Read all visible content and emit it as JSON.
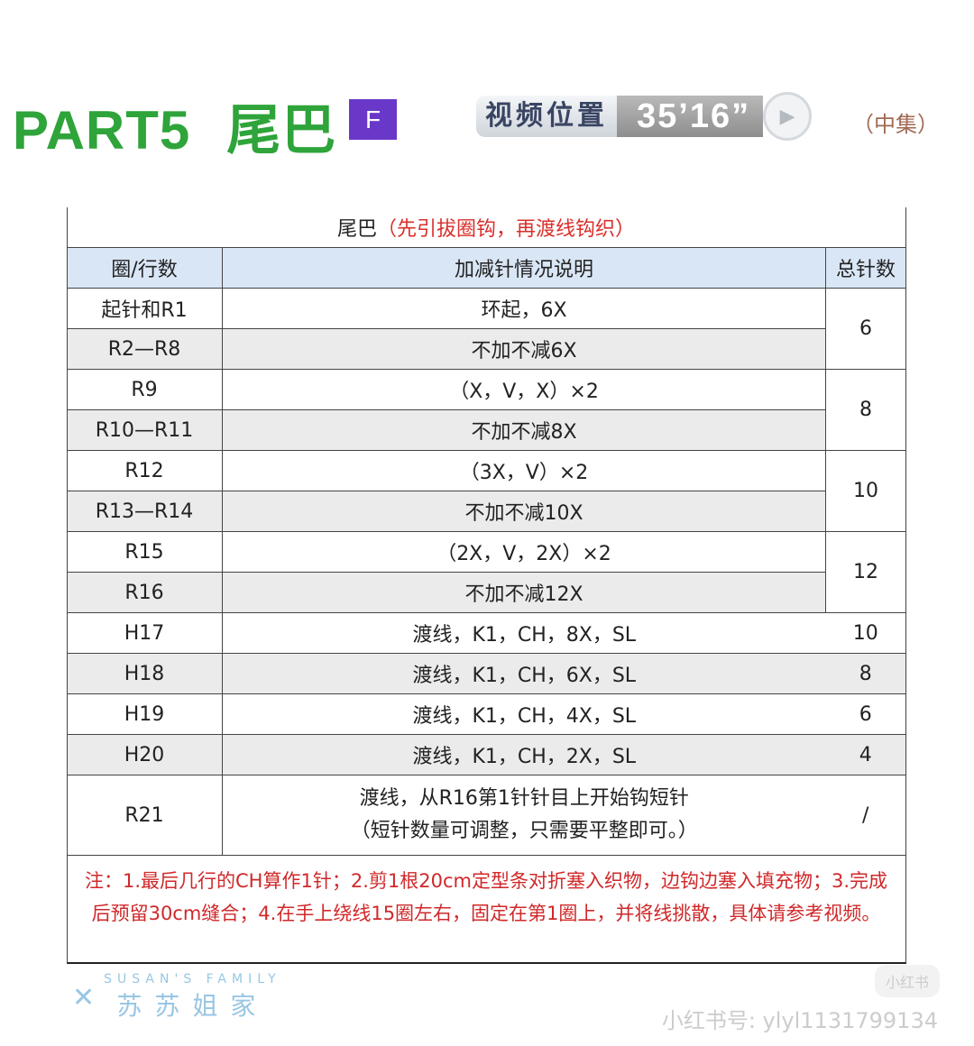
{
  "header": {
    "part": "PART5",
    "name": "尾巴",
    "badge": "F",
    "video_label": "视频位置",
    "video_time": "35’16”",
    "episode": "（中集）"
  },
  "table": {
    "caption": "尾巴",
    "caption_note": "（先引拔圈钩，再渡线钩织）",
    "columns": [
      "圈/行数",
      "加减针情况说明",
      "总针数"
    ],
    "rows": [
      {
        "row": "起针和R1",
        "desc": "环起，6X",
        "total": "6"
      },
      {
        "row": "R2—R8",
        "desc": "不加不减6X"
      },
      {
        "row": "R9",
        "desc": "（X，V，X）×2",
        "total": "8"
      },
      {
        "row": "R10—R11",
        "desc": "不加不减8X"
      },
      {
        "row": "R12",
        "desc": "（3X，V）×2",
        "total": "10"
      },
      {
        "row": "R13—R14",
        "desc": "不加不减10X"
      },
      {
        "row": "R15",
        "desc": "（2X，V，2X）×2",
        "total": "12"
      },
      {
        "row": "R16",
        "desc": "不加不减12X"
      },
      {
        "row": "H17",
        "desc": "渡线，K1，CH，8X，SL",
        "total": "10"
      },
      {
        "row": "H18",
        "desc": "渡线，K1，CH，6X，SL",
        "total": "8"
      },
      {
        "row": "H19",
        "desc": "渡线，K1，CH，4X，SL",
        "total": "6"
      },
      {
        "row": "H20",
        "desc": "渡线，K1，CH，2X，SL",
        "total": "4"
      },
      {
        "row": "R21",
        "desc": "渡线，从R16第1针针目上开始钩短针",
        "desc2": "（短针数量可调整，只需要平整即可。）",
        "total": "/"
      }
    ],
    "note": "注：1.最后几行的CH算作1针；2.剪1根20cm定型条对折塞入织物，边钩边塞入填充物；3.完成后预留30cm缝合；4.在手上绕线15圈左右，固定在第1圈上，并将线挑散，具体请参考视频。"
  },
  "watermark": {
    "en": "SUSAN'S FAMILY",
    "cn": "苏苏姐家"
  },
  "footer": {
    "logo": "小红书",
    "id": "小红书号: ylyl1131799134"
  }
}
